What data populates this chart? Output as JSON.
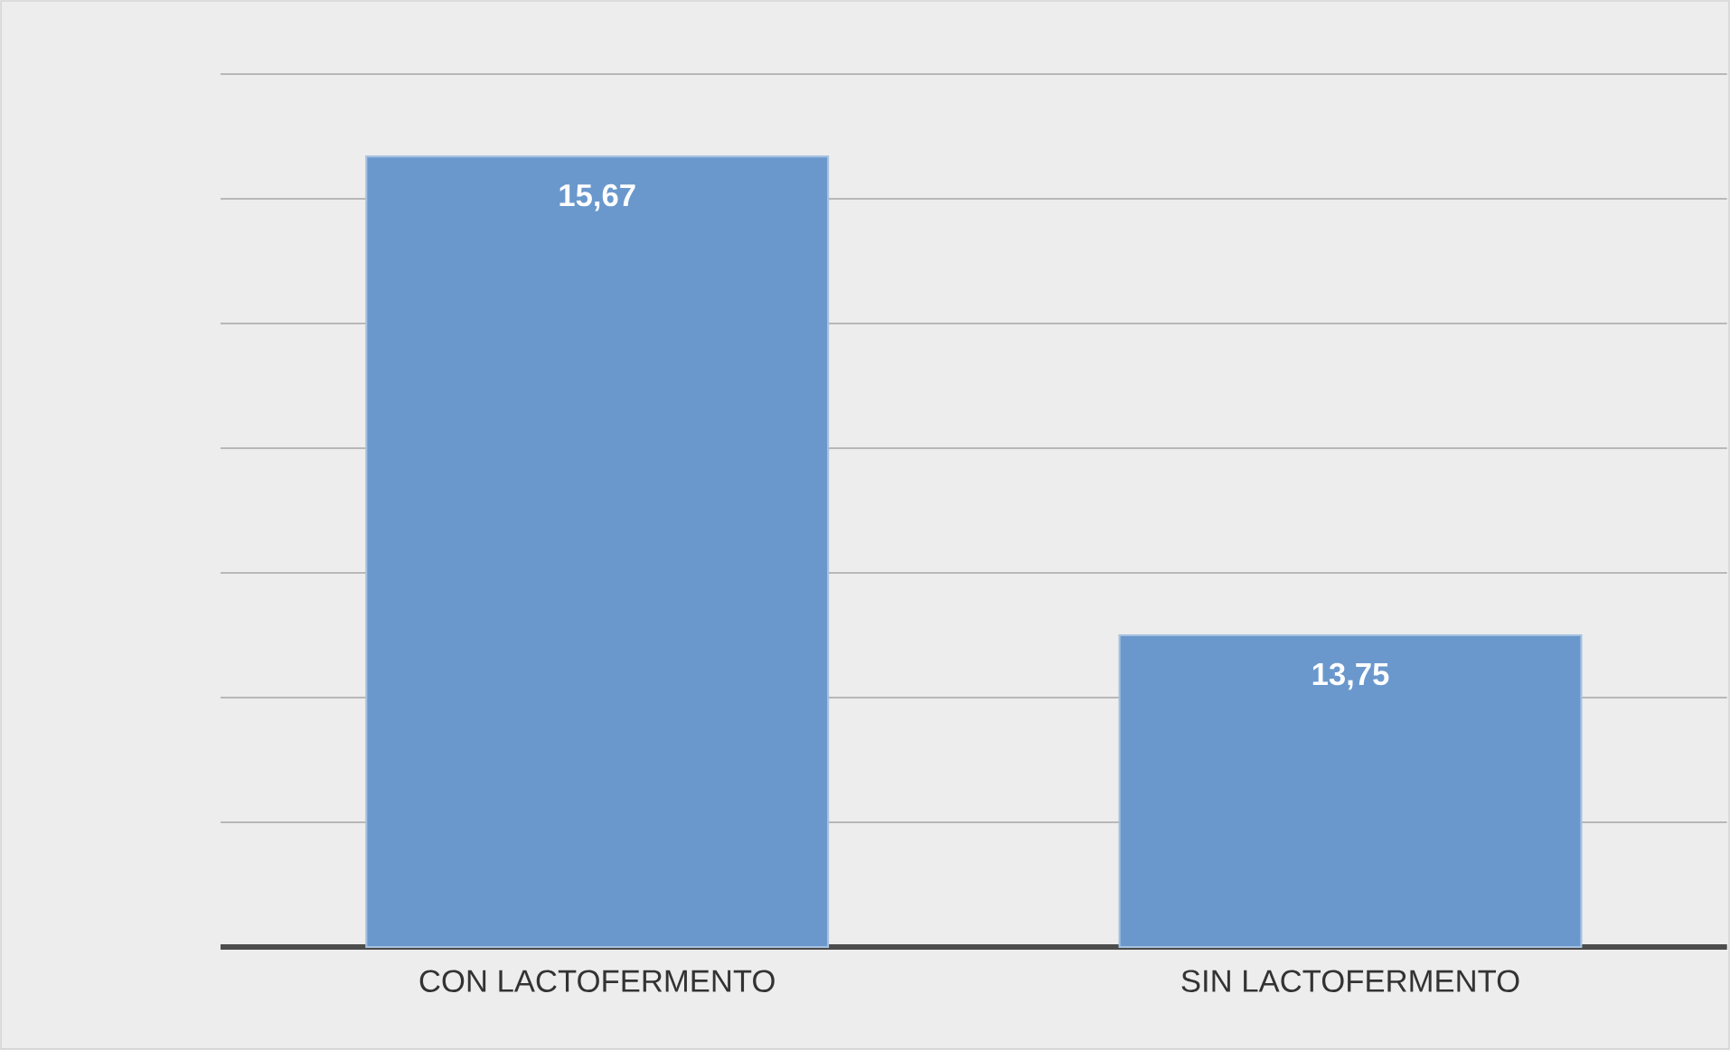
{
  "chart_data": {
    "type": "bar",
    "categories": [
      "CON LACTOFERMENTO",
      "SIN LACTOFERMENTO"
    ],
    "values": [
      15.67,
      13.75
    ],
    "value_labels": [
      "15,67",
      "13,75"
    ],
    "color": "#6a98cc",
    "ylim": [
      12.5,
      16
    ],
    "grid": "y",
    "tick_labels": "x"
  }
}
